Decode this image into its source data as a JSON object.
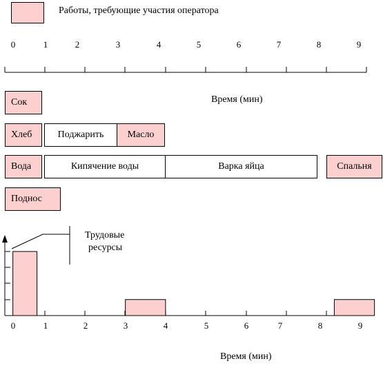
{
  "legend": {
    "label": "Работы, требующие участия оператора",
    "color": "#fdd0d0"
  },
  "top_axis": {
    "ticks": [
      "0",
      "1",
      "2",
      "3",
      "4",
      "5",
      "6",
      "7",
      "8",
      "9"
    ],
    "label": "Время (мин)"
  },
  "tasks": {
    "juice": "Сок",
    "bread": "Хлеб",
    "toast": "Поджарить",
    "butter": "Масло",
    "water": "Вода",
    "boil_water": "Кипячение воды",
    "boil_egg": "Варка яйца",
    "bedroom": "Спальня",
    "tray": "Поднос"
  },
  "labor_chart": {
    "label_line1": "Трудовые",
    "label_line2": "ресурсы",
    "x_ticks": [
      "0",
      "1",
      "2",
      "3",
      "4",
      "5",
      "6",
      "7",
      "8",
      "9"
    ],
    "x_label": "Время (мин)"
  },
  "chart_data": {
    "type": "bar",
    "title": "",
    "xlabel": "Время (мин)",
    "ylabel": "Трудовые ресурсы",
    "xlim": [
      0,
      9
    ],
    "bars": [
      {
        "start": 0.2,
        "end": 0.8,
        "value": 4
      },
      {
        "start": 3.0,
        "end": 4.0,
        "value": 1
      },
      {
        "start": 8.2,
        "end": 9.2,
        "value": 1
      }
    ],
    "ylim": [
      0,
      5
    ]
  }
}
